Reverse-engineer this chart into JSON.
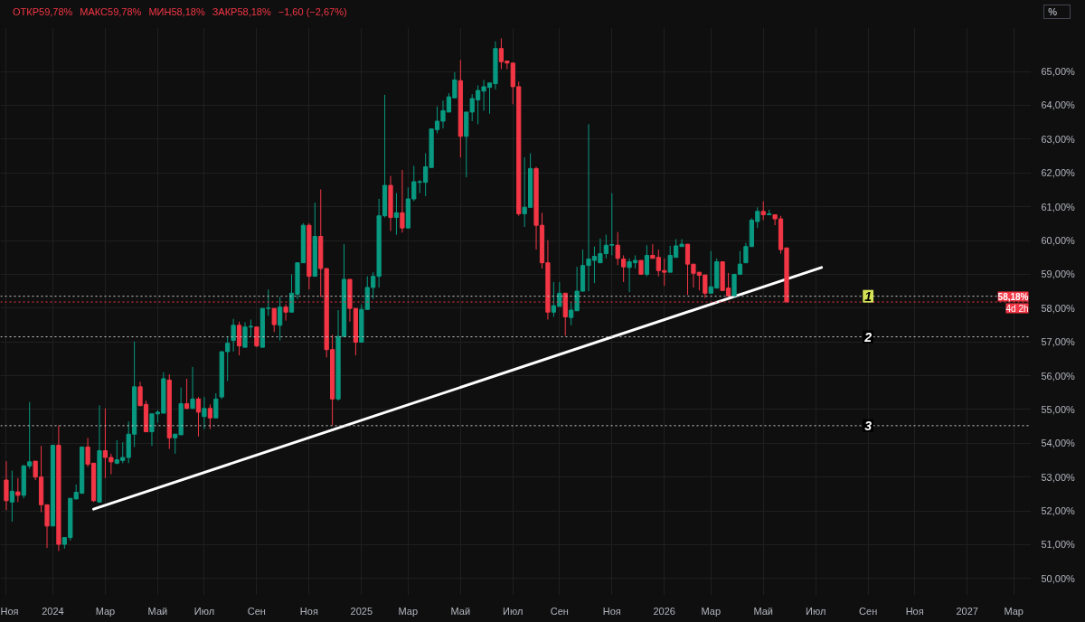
{
  "chart_data": {
    "type": "candlestick",
    "x": [
      "2023-11-06",
      "2023-11-13",
      "2023-11-20",
      "2023-11-27",
      "2023-12-04",
      "2023-12-11",
      "2023-12-18",
      "2023-12-25",
      "2024-01-01",
      "2024-01-08",
      "2024-01-15",
      "2024-01-22",
      "2024-01-29",
      "2024-02-05",
      "2024-02-12",
      "2024-02-19",
      "2024-02-26",
      "2024-03-04",
      "2024-03-11",
      "2024-03-18",
      "2024-03-25",
      "2024-04-01",
      "2024-04-08",
      "2024-04-15",
      "2024-04-22",
      "2024-04-29",
      "2024-05-06",
      "2024-05-13",
      "2024-05-20",
      "2024-05-27",
      "2024-06-03",
      "2024-06-10",
      "2024-06-17",
      "2024-06-24",
      "2024-07-01",
      "2024-07-08",
      "2024-07-15",
      "2024-07-22",
      "2024-07-29",
      "2024-08-05",
      "2024-08-12",
      "2024-08-19",
      "2024-08-26",
      "2024-09-02",
      "2024-09-09",
      "2024-09-16",
      "2024-09-23",
      "2024-09-30",
      "2024-10-07",
      "2024-10-14",
      "2024-10-21",
      "2024-10-28",
      "2024-11-04",
      "2024-11-11",
      "2024-11-18",
      "2024-11-25",
      "2024-12-02",
      "2024-12-09",
      "2024-12-16",
      "2024-12-23",
      "2024-12-30",
      "2025-01-06",
      "2025-01-13",
      "2025-01-20",
      "2025-01-27",
      "2025-02-03",
      "2025-02-10",
      "2025-02-17",
      "2025-02-24",
      "2025-03-03",
      "2025-03-10",
      "2025-03-17",
      "2025-03-24",
      "2025-03-31",
      "2025-04-07",
      "2025-04-14",
      "2025-04-21",
      "2025-04-28",
      "2025-05-05",
      "2025-05-12",
      "2025-05-19",
      "2025-05-26",
      "2025-06-02",
      "2025-06-09",
      "2025-06-16",
      "2025-06-23",
      "2025-06-30",
      "2025-07-07",
      "2025-07-14",
      "2025-07-21",
      "2025-07-28",
      "2025-08-04",
      "2025-08-11",
      "2025-08-18",
      "2025-08-25",
      "2025-09-01",
      "2025-09-08",
      "2025-09-15",
      "2025-09-22",
      "2025-09-29",
      "2025-10-06",
      "2025-10-13",
      "2025-10-20",
      "2025-10-27",
      "2025-11-03",
      "2025-11-10",
      "2025-11-17",
      "2025-11-24",
      "2025-12-01",
      "2025-12-08",
      "2025-12-15",
      "2025-12-22",
      "2025-12-29",
      "2026-01-05",
      "2026-01-12",
      "2026-01-19",
      "2026-01-26",
      "2026-02-02",
      "2026-02-09",
      "2026-02-16",
      "2026-02-23",
      "2026-03-02",
      "2026-03-09",
      "2026-03-16",
      "2026-03-23",
      "2026-03-30",
      "2026-04-06",
      "2026-04-13",
      "2026-04-20",
      "2026-04-27",
      "2026-05-04",
      "2026-05-11",
      "2026-05-18",
      "2026-05-25",
      "2026-06-01"
    ],
    "ohlc": [
      [
        52.91,
        53.47,
        52.02,
        52.3
      ],
      [
        52.26,
        53.19,
        51.68,
        52.58
      ],
      [
        52.56,
        52.97,
        52.26,
        52.46
      ],
      [
        52.46,
        53.36,
        52.37,
        53.33
      ],
      [
        53.33,
        55.22,
        53.25,
        53.45
      ],
      [
        53.47,
        53.47,
        52.91,
        53.0
      ],
      [
        53.0,
        53.92,
        51.96,
        52.18
      ],
      [
        52.18,
        52.18,
        50.9,
        51.55
      ],
      [
        51.55,
        53.94,
        51.55,
        53.94
      ],
      [
        53.94,
        54.53,
        50.81,
        51.01
      ],
      [
        51.01,
        51.21,
        50.88,
        51.21
      ],
      [
        51.21,
        52.37,
        51.12,
        52.37
      ],
      [
        52.35,
        52.78,
        52.35,
        52.55
      ],
      [
        52.52,
        53.89,
        52.52,
        53.89
      ],
      [
        53.89,
        54.16,
        53.3,
        53.38
      ],
      [
        53.41,
        53.41,
        52.26,
        52.3
      ],
      [
        52.26,
        55.12,
        52.26,
        53.78
      ],
      [
        53.78,
        55.03,
        52.97,
        53.58
      ],
      [
        53.58,
        53.69,
        53.08,
        53.45
      ],
      [
        53.41,
        54.09,
        53.38,
        53.51
      ],
      [
        53.49,
        54.03,
        53.41,
        53.58
      ],
      [
        53.58,
        54.64,
        53.41,
        54.27
      ],
      [
        54.27,
        57.01,
        53.89,
        55.67
      ],
      [
        55.67,
        55.82,
        55.11,
        55.11
      ],
      [
        55.15,
        55.26,
        54.34,
        54.34
      ],
      [
        54.34,
        54.87,
        53.92,
        54.87
      ],
      [
        54.87,
        54.98,
        54.61,
        54.92
      ],
      [
        54.89,
        56.1,
        54.89,
        55.91
      ],
      [
        55.87,
        56.04,
        53.83,
        54.16
      ],
      [
        54.16,
        54.27,
        53.69,
        54.27
      ],
      [
        54.25,
        55.65,
        54.25,
        55.17
      ],
      [
        55.17,
        55.91,
        55.01,
        55.03
      ],
      [
        55.03,
        56.26,
        55.03,
        55.31
      ],
      [
        55.31,
        55.37,
        54.2,
        54.92
      ],
      [
        54.79,
        55.37,
        54.42,
        55.03
      ],
      [
        55.03,
        55.15,
        54.42,
        54.75
      ],
      [
        54.75,
        55.48,
        54.75,
        55.31
      ],
      [
        55.37,
        56.71,
        55.31,
        56.71
      ],
      [
        56.71,
        57.16,
        55.84,
        56.96
      ],
      [
        57.04,
        57.68,
        56.71,
        57.49
      ],
      [
        57.49,
        57.6,
        56.6,
        56.88
      ],
      [
        56.84,
        57.58,
        56.84,
        57.44
      ],
      [
        57.44,
        57.66,
        57.16,
        57.46
      ],
      [
        57.44,
        57.44,
        56.84,
        56.88
      ],
      [
        56.84,
        57.99,
        56.84,
        57.99
      ],
      [
        57.99,
        58.55,
        57.77,
        58.0
      ],
      [
        57.99,
        57.99,
        57.29,
        57.51
      ],
      [
        57.49,
        58.33,
        57.04,
        58.03
      ],
      [
        58.03,
        58.11,
        57.63,
        57.88
      ],
      [
        57.88,
        59.0,
        57.88,
        58.44
      ],
      [
        58.41,
        59.34,
        58.27,
        59.34
      ],
      [
        59.34,
        60.51,
        59.34,
        60.45
      ],
      [
        60.45,
        60.51,
        58.55,
        58.94
      ],
      [
        58.94,
        61.12,
        58.94,
        60.12
      ],
      [
        60.12,
        61.51,
        58.33,
        59.17
      ],
      [
        59.17,
        59.17,
        56.54,
        56.77
      ],
      [
        56.77,
        57.21,
        54.53,
        55.31
      ],
      [
        55.31,
        57.94,
        55.26,
        57.16
      ],
      [
        57.16,
        59.89,
        57.16,
        58.85
      ],
      [
        58.85,
        58.85,
        57.6,
        57.99
      ],
      [
        57.99,
        57.99,
        56.6,
        56.99
      ],
      [
        56.99,
        58.11,
        56.99,
        57.96
      ],
      [
        57.96,
        58.94,
        57.96,
        58.61
      ],
      [
        58.61,
        59.06,
        58.27,
        58.94
      ],
      [
        58.94,
        61.23,
        58.61,
        60.73
      ],
      [
        60.73,
        64.31,
        60.68,
        61.63
      ],
      [
        61.63,
        61.91,
        60.28,
        60.68
      ],
      [
        60.68,
        61.4,
        60.17,
        60.82
      ],
      [
        60.82,
        62.09,
        60.23,
        60.37
      ],
      [
        60.37,
        61.57,
        60.37,
        61.23
      ],
      [
        61.23,
        62.21,
        61.16,
        61.74
      ],
      [
        61.72,
        61.79,
        61.4,
        61.74
      ],
      [
        61.72,
        62.58,
        61.31,
        62.18
      ],
      [
        62.16,
        63.32,
        62.16,
        63.3
      ],
      [
        63.28,
        63.97,
        63.17,
        63.53
      ],
      [
        63.53,
        64.14,
        63.32,
        63.84
      ],
      [
        63.8,
        64.36,
        63.8,
        64.25
      ],
      [
        64.22,
        64.98,
        64.22,
        64.75
      ],
      [
        64.73,
        65.34,
        62.46,
        63.08
      ],
      [
        63.08,
        63.8,
        61.87,
        63.8
      ],
      [
        63.8,
        64.33,
        63.53,
        64.2
      ],
      [
        64.16,
        64.59,
        63.44,
        64.44
      ],
      [
        64.42,
        64.75,
        63.84,
        64.55
      ],
      [
        64.53,
        64.66,
        63.75,
        64.66
      ],
      [
        64.64,
        65.89,
        64.47,
        65.68
      ],
      [
        65.68,
        65.98,
        65.07,
        65.29
      ],
      [
        65.31,
        65.31,
        65.07,
        65.25
      ],
      [
        65.25,
        65.25,
        64.03,
        64.55
      ],
      [
        64.55,
        64.7,
        60.73,
        60.79
      ],
      [
        60.79,
        62.46,
        60.4,
        60.98
      ],
      [
        60.98,
        62.58,
        60.98,
        62.13
      ],
      [
        62.13,
        62.18,
        59.73,
        60.45
      ],
      [
        60.45,
        60.82,
        59.17,
        59.34
      ],
      [
        59.34,
        60.01,
        57.66,
        57.88
      ],
      [
        57.88,
        58.77,
        57.74,
        58.07
      ],
      [
        58.05,
        58.77,
        58.05,
        58.44
      ],
      [
        58.44,
        58.44,
        57.18,
        57.74
      ],
      [
        57.72,
        58.18,
        57.49,
        57.94
      ],
      [
        57.92,
        59.22,
        57.92,
        58.5
      ],
      [
        58.5,
        59.73,
        58.5,
        59.26
      ],
      [
        59.26,
        63.44,
        58.5,
        59.45
      ],
      [
        59.41,
        59.82,
        58.74,
        59.53
      ],
      [
        59.34,
        60.06,
        59.34,
        59.61
      ],
      [
        59.61,
        60.17,
        59.47,
        59.86
      ],
      [
        59.86,
        61.4,
        59.56,
        59.88
      ],
      [
        59.86,
        60.25,
        59.27,
        59.47
      ],
      [
        59.45,
        59.56,
        58.77,
        59.22
      ],
      [
        59.2,
        59.47,
        58.47,
        59.37
      ],
      [
        59.34,
        59.56,
        59.17,
        59.41
      ],
      [
        59.41,
        59.41,
        59.0,
        59.0
      ],
      [
        59.0,
        59.86,
        58.94,
        59.56
      ],
      [
        59.56,
        59.89,
        59.47,
        59.47
      ],
      [
        59.5,
        59.73,
        58.94,
        59.11
      ],
      [
        59.11,
        59.47,
        58.66,
        59.06
      ],
      [
        59.06,
        59.84,
        59.06,
        59.56
      ],
      [
        59.5,
        60.04,
        59.5,
        59.84
      ],
      [
        59.82,
        60.04,
        59.82,
        59.89
      ],
      [
        59.89,
        59.89,
        58.39,
        59.3
      ],
      [
        59.3,
        59.3,
        58.61,
        59.03
      ],
      [
        59.06,
        59.06,
        58.52,
        58.97
      ],
      [
        58.98,
        58.98,
        58.3,
        58.44
      ],
      [
        58.44,
        59.69,
        58.44,
        58.63
      ],
      [
        58.59,
        59.47,
        58.59,
        59.37
      ],
      [
        59.37,
        59.37,
        58.52,
        58.52
      ],
      [
        58.59,
        59.04,
        58.33,
        58.36
      ],
      [
        58.36,
        59.0,
        58.33,
        59.0
      ],
      [
        59.0,
        59.69,
        59.0,
        59.3
      ],
      [
        59.34,
        59.93,
        59.34,
        59.82
      ],
      [
        59.82,
        60.66,
        59.82,
        60.6
      ],
      [
        60.56,
        60.98,
        60.37,
        60.86
      ],
      [
        60.86,
        61.16,
        60.6,
        60.76
      ],
      [
        60.76,
        60.91,
        60.76,
        60.79
      ],
      [
        60.76,
        60.76,
        60.45,
        60.64
      ],
      [
        60.64,
        60.73,
        59.61,
        59.73
      ],
      [
        59.78,
        59.78,
        58.18,
        58.18
      ]
    ],
    "colors": [
      "#f23645",
      "#089981",
      "#f23645",
      "#089981",
      "#089981",
      "#f23645",
      "#f23645",
      "#f23645",
      "#089981",
      "#f23645",
      "#089981",
      "#089981",
      "#089981",
      "#089981",
      "#f23645",
      "#f23645",
      "#089981",
      "#f23645",
      "#f23645",
      "#089981",
      "#089981",
      "#089981",
      "#089981",
      "#f23645",
      "#f23645",
      "#089981",
      "#089981",
      "#089981",
      "#f23645",
      "#089981",
      "#089981",
      "#f23645",
      "#089981",
      "#f23645",
      "#089981",
      "#f23645",
      "#089981",
      "#089981",
      "#089981",
      "#089981",
      "#f23645",
      "#089981",
      "#089981",
      "#f23645",
      "#089981",
      "#089981",
      "#f23645",
      "#089981",
      "#f23645",
      "#089981",
      "#089981",
      "#089981",
      "#f23645",
      "#089981",
      "#f23645",
      "#f23645",
      "#f23645",
      "#089981",
      "#089981",
      "#f23645",
      "#f23645",
      "#089981",
      "#089981",
      "#089981",
      "#089981",
      "#089981",
      "#f23645",
      "#089981",
      "#f23645",
      "#089981",
      "#089981",
      "#089981",
      "#089981",
      "#089981",
      "#089981",
      "#089981",
      "#089981",
      "#089981",
      "#f23645",
      "#089981",
      "#089981",
      "#089981",
      "#089981",
      "#089981",
      "#089981",
      "#f23645",
      "#f23645",
      "#f23645",
      "#f23645",
      "#089981",
      "#089981",
      "#f23645",
      "#f23645",
      "#f23645",
      "#089981",
      "#089981",
      "#f23645",
      "#089981",
      "#089981",
      "#089981",
      "#089981",
      "#089981",
      "#089981",
      "#089981",
      "#089981",
      "#f23645",
      "#f23645",
      "#089981",
      "#089981",
      "#f23645",
      "#089981",
      "#f23645",
      "#f23645",
      "#f23645",
      "#089981",
      "#089981",
      "#089981",
      "#f23645",
      "#f23645",
      "#f23645",
      "#f23645",
      "#089981",
      "#089981",
      "#f23645",
      "#f23645",
      "#089981",
      "#089981",
      "#089981",
      "#089981",
      "#089981",
      "#f23645",
      "#089981",
      "#f23645",
      "#f23645",
      "#f23645"
    ],
    "series": [
      {
        "type": "line",
        "x": [
          "2024-02-19",
          "2026-07-13"
        ],
        "values": [
          52.05,
          59.2
        ],
        "color": "#ffffff"
      }
    ],
    "xlim": [
      "2023-10-30",
      "2027-03-22"
    ],
    "ylim": [
      49.5,
      66.3
    ],
    "xticks": [
      {
        "value": "2023-11-06",
        "label": "Ноя"
      },
      {
        "value": "2024-01-01",
        "label": "2024"
      },
      {
        "value": "2024-03-04",
        "label": "Мар"
      },
      {
        "value": "2024-05-06",
        "label": "Май"
      },
      {
        "value": "2024-07-01",
        "label": "Июл"
      },
      {
        "value": "2024-09-02",
        "label": "Сен"
      },
      {
        "value": "2024-11-04",
        "label": "Ноя"
      },
      {
        "value": "2025-01-06",
        "label": "2025"
      },
      {
        "value": "2025-03-03",
        "label": "Мар"
      },
      {
        "value": "2025-05-05",
        "label": "Май"
      },
      {
        "value": "2025-07-07",
        "label": "Июл"
      },
      {
        "value": "2025-09-01",
        "label": "Сен"
      },
      {
        "value": "2025-11-03",
        "label": "Ноя"
      },
      {
        "value": "2026-01-05",
        "label": "2026"
      },
      {
        "value": "2026-03-02",
        "label": "Мар"
      },
      {
        "value": "2026-05-04",
        "label": "Май"
      },
      {
        "value": "2026-07-06",
        "label": "Июл"
      },
      {
        "value": "2026-09-07",
        "label": "Сен"
      },
      {
        "value": "2026-11-02",
        "label": "Ноя"
      },
      {
        "value": "2027-01-04",
        "label": "2027"
      },
      {
        "value": "2027-03-01",
        "label": "Мар"
      }
    ],
    "yticks": [
      {
        "value": 50,
        "label": "50,00%"
      },
      {
        "value": 51,
        "label": "51,00%"
      },
      {
        "value": 52,
        "label": "52,00%"
      },
      {
        "value": 53,
        "label": "53,00%"
      },
      {
        "value": 54,
        "label": "54,00%"
      },
      {
        "value": 55,
        "label": "55,00%"
      },
      {
        "value": 56,
        "label": "56,00%"
      },
      {
        "value": 57,
        "label": "57,00%"
      },
      {
        "value": 58,
        "label": "58,00%"
      },
      {
        "value": 59,
        "label": "59,00%"
      },
      {
        "value": 60,
        "label": "60,00%"
      },
      {
        "value": 61,
        "label": "61,00%"
      },
      {
        "value": 62,
        "label": "62,00%"
      },
      {
        "value": 63,
        "label": "63,00%"
      },
      {
        "value": 64,
        "label": "64,00%"
      },
      {
        "value": 65,
        "label": "65,00%"
      }
    ],
    "ref_lines": [
      {
        "axis": "y",
        "value": 58.35,
        "color": "#cccccc",
        "line_style": "dotted"
      },
      {
        "axis": "y",
        "value": 57.15,
        "color": "#cccccc",
        "line_style": "dotted"
      },
      {
        "axis": "y",
        "value": 54.52,
        "color": "#cccccc",
        "line_style": "dotted"
      },
      {
        "axis": "y",
        "value": 58.18,
        "label": "58,18%",
        "color": "#f23645",
        "line_style": "dotted"
      }
    ],
    "annotations": [
      "ОТКР59,78%",
      "МАКС59,78%",
      "МИН58,18%",
      "ЗАКР58,18%",
      "−1,60 (−2,67%)",
      "4d 2h",
      "%",
      {
        "text": "1",
        "x": "2026-09-07",
        "y": 58.35
      },
      {
        "text": "2",
        "x": "2026-09-07",
        "y": 57.15
      },
      {
        "text": "3",
        "x": "2026-09-07",
        "y": 54.52
      }
    ],
    "grid": true
  }
}
